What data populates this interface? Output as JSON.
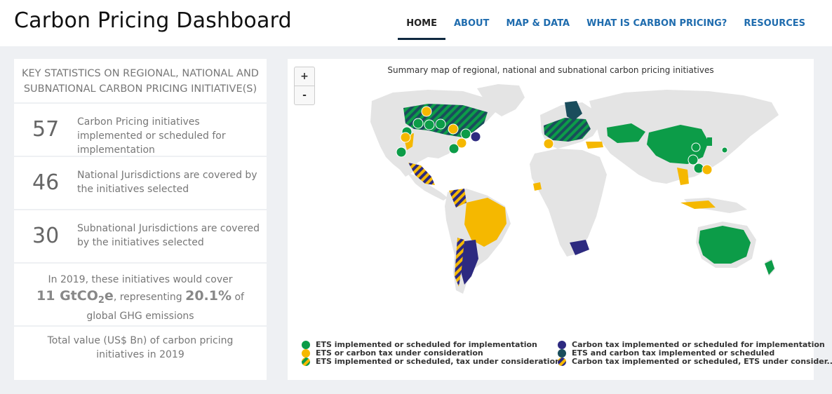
{
  "header": {
    "title": "Carbon Pricing Dashboard",
    "nav": [
      "HOME",
      "ABOUT",
      "MAP & DATA",
      "WHAT IS CARBON PRICING?",
      "RESOURCES"
    ],
    "active": "HOME"
  },
  "stats": {
    "title": "KEY STATISTICS ON REGIONAL, NATIONAL AND SUBNATIONAL CARBON PRICING INITIATIVE(S)",
    "rows": [
      {
        "value": "57",
        "text": "Carbon Pricing initiatives implemented or scheduled for implementation"
      },
      {
        "value": "46",
        "text": "National Jurisdictions are covered by the initiatives selected"
      },
      {
        "value": "30",
        "text": "Subnational Jurisdictions are covered by the initiatives selected"
      }
    ],
    "coverage": {
      "prefix": "In 2019, these initiatives would cover",
      "amount": "11 GtCO",
      "sub": "2",
      "unit": "e",
      "mid": ", representing ",
      "percent": "20.1%",
      "suffix": " of",
      "tail": "global GHG emissions"
    },
    "total": "Total value (US$ Bn) of carbon pricing initiatives in 2019"
  },
  "map": {
    "title": "Summary map of regional, national and subnational carbon pricing initiatives",
    "zoom_in": "+",
    "zoom_out": "-",
    "colors": {
      "ets": "#0c9c48",
      "consideration": "#f5b800",
      "carbon_tax": "#2d2a80",
      "both": "#1a4d5c",
      "land": "#e4e4e4"
    },
    "legend": [
      {
        "label": "ETS implemented or scheduled for implementation",
        "swatch": "ets"
      },
      {
        "label": "ETS or carbon tax under consideration",
        "swatch": "consideration"
      },
      {
        "label": "ETS implemented or scheduled, tax under consideration",
        "swatch": "ets-striped"
      },
      {
        "label": "Carbon tax implemented or scheduled for implementation",
        "swatch": "carbon_tax"
      },
      {
        "label": "ETS and carbon tax implemented or scheduled",
        "swatch": "both"
      },
      {
        "label": "Carbon tax implemented or scheduled, ETS under consider...",
        "swatch": "tax-striped"
      }
    ]
  }
}
